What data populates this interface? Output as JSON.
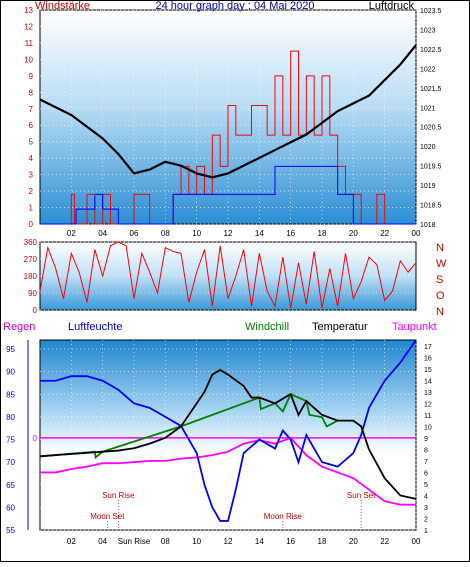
{
  "colors": {
    "wind": "#ff0000",
    "gust_blue": "#0000ff",
    "pressure": "#000000",
    "humidity": "#0000ff",
    "windchill": "#008000",
    "temperature": "#000000",
    "dewpoint": "#ff00ff",
    "rain_line": "#ff00ff",
    "axis_left_top": "#cc0000",
    "axis_left_bottom": "#0000cc",
    "sun_label": "#cc0000"
  },
  "chart_data": [
    {
      "type": "line",
      "title": "24 hour graph day : 04 Mai 2020",
      "left_label": "Windstärke",
      "right_label": "Luftdruck",
      "x_ticks": [
        "02",
        "04",
        "06",
        "08",
        "10",
        "12",
        "14",
        "16",
        "18",
        "20",
        "22",
        "00"
      ],
      "left_ticks": [
        "0",
        "1",
        "2",
        "3",
        "4",
        "5",
        "6",
        "7",
        "8",
        "9",
        "10",
        "11",
        "12",
        "13"
      ],
      "right_ticks": [
        "1018",
        "1018.5",
        "1019",
        "1019.5",
        "1020",
        "1020.5",
        "1021",
        "1021.5",
        "1022",
        "1022.5",
        "1023",
        "1023.5"
      ],
      "ylim_left": [
        0,
        13
      ],
      "ylim_right": [
        1018,
        1023.5
      ],
      "series": [
        {
          "name": "Windstärke",
          "axis": "left",
          "x": [
            0,
            1,
            2,
            2.2,
            3,
            3.5,
            4,
            4.5,
            5,
            6,
            7,
            7.5,
            8,
            8.5,
            9,
            9.5,
            10,
            10.5,
            11,
            11.5,
            12,
            12.5,
            13,
            13.5,
            14,
            14.5,
            15,
            15.5,
            16,
            16.5,
            17,
            17.5,
            18,
            18.5,
            19,
            19.5,
            20,
            20.5,
            21,
            21.5,
            22,
            23,
            24
          ],
          "y": [
            0,
            0,
            1.8,
            0,
            1.8,
            0,
            1.8,
            0,
            0,
            1.8,
            0,
            0,
            0,
            1.8,
            3.5,
            1.8,
            3.5,
            1.8,
            5.4,
            3.5,
            7.2,
            5.4,
            5.4,
            7.2,
            7.2,
            5.4,
            9,
            5.4,
            10.5,
            5.4,
            9,
            5.4,
            9,
            5.4,
            3.5,
            1.8,
            1.8,
            0,
            0,
            1.8,
            0,
            0,
            0
          ]
        },
        {
          "name": "Gust",
          "axis": "left",
          "x": [
            0,
            2,
            2.3,
            3.5,
            4,
            5,
            6,
            8.5,
            9,
            10,
            11,
            12,
            13,
            14,
            15,
            16,
            17,
            18,
            19,
            20,
            24
          ],
          "y": [
            0,
            0,
            0.9,
            1.8,
            0.9,
            0,
            0,
            1.8,
            1.8,
            1.8,
            1.8,
            1.8,
            1.8,
            1.8,
            3.5,
            3.5,
            3.5,
            3.5,
            1.8,
            0,
            0
          ]
        },
        {
          "name": "Luftdruck",
          "axis": "right",
          "x": [
            0,
            1,
            2,
            3,
            4,
            5,
            6,
            7,
            8,
            9,
            10,
            11,
            12,
            13,
            14,
            15,
            16,
            17,
            18,
            19,
            20,
            21,
            22,
            23,
            24
          ],
          "y": [
            1021.2,
            1021.0,
            1020.8,
            1020.5,
            1020.2,
            1019.8,
            1019.3,
            1019.4,
            1019.6,
            1019.5,
            1019.3,
            1019.2,
            1019.3,
            1019.5,
            1019.7,
            1019.9,
            1020.1,
            1020.3,
            1020.6,
            1020.9,
            1021.1,
            1021.3,
            1021.7,
            1022.1,
            1022.6
          ]
        }
      ]
    },
    {
      "type": "line",
      "title": "",
      "left_ticks": [
        "0",
        "90",
        "180",
        "270",
        "360"
      ],
      "right_ticks": [
        "N",
        "W",
        "S",
        "O",
        "N"
      ],
      "ylim": [
        0,
        360
      ],
      "series": [
        {
          "name": "Windrichtung",
          "x": [
            0,
            0.5,
            1,
            1.5,
            2,
            2.5,
            3,
            3.5,
            4,
            4.5,
            5,
            5.5,
            6,
            6.5,
            7,
            7.5,
            8,
            8.5,
            9,
            9.5,
            10,
            10.5,
            11,
            11.5,
            12,
            12.5,
            13,
            13.5,
            14,
            14.5,
            15,
            15.5,
            16,
            16.5,
            17,
            17.5,
            18,
            18.5,
            19,
            19.5,
            20,
            20.5,
            21,
            21.5,
            22,
            22.5,
            23,
            23.5,
            24
          ],
          "y": [
            100,
            330,
            220,
            60,
            300,
            200,
            40,
            320,
            180,
            340,
            360,
            340,
            60,
            300,
            200,
            90,
            330,
            310,
            300,
            40,
            200,
            320,
            20,
            340,
            60,
            180,
            320,
            20,
            300,
            100,
            20,
            280,
            10,
            250,
            30,
            310,
            10,
            220,
            20,
            300,
            60,
            150,
            280,
            240,
            50,
            100,
            260,
            200,
            250
          ]
        }
      ]
    },
    {
      "type": "line",
      "left_label": "Regen",
      "left_label2": "Luftfeuchte",
      "legend": [
        "Windchill",
        "Temperatur",
        "Taupunkt"
      ],
      "x_ticks": [
        "02",
        "04",
        "Sun Rise",
        "08",
        "10",
        "12",
        "14",
        "16",
        "18",
        "20",
        "22",
        "00"
      ],
      "left_ticks": [
        "55",
        "60",
        "65",
        "70",
        "75",
        "80",
        "85",
        "90",
        "95"
      ],
      "right_ticks": [
        "1",
        "2",
        "3",
        "4",
        "5",
        "6",
        "7",
        "8",
        "9",
        "10",
        "11",
        "12",
        "13",
        "14",
        "15",
        "16",
        "17"
      ],
      "zero_label": "0",
      "ylim_left": [
        55,
        97
      ],
      "ylim_right": [
        1,
        17.5
      ],
      "annotations": [
        {
          "text": "Sun Rise",
          "x": 5.0,
          "row": "upper"
        },
        {
          "text": "Sun Set",
          "x": 20.5,
          "row": "upper"
        },
        {
          "text": "Moon Set",
          "x": 4.3,
          "row": "lower"
        },
        {
          "text": "Moon Rise",
          "x": 15.5,
          "row": "lower"
        }
      ],
      "series": [
        {
          "name": "Luftfeuchte",
          "axis": "left",
          "x": [
            0,
            1,
            2,
            3,
            4,
            5,
            6,
            7,
            8,
            9,
            10,
            10.5,
            11,
            11.5,
            12,
            12.5,
            13,
            14,
            15,
            15.5,
            16,
            16.5,
            17,
            18,
            19,
            20,
            20.5,
            21,
            22,
            23,
            24
          ],
          "y": [
            88,
            88,
            89,
            89,
            88,
            86,
            83,
            82,
            80,
            78,
            72,
            65,
            60,
            57,
            57,
            64,
            72,
            75,
            73,
            77,
            75,
            70,
            76,
            70,
            69,
            72,
            76,
            82,
            88,
            92,
            97
          ]
        },
        {
          "name": "Temperatur",
          "axis": "right",
          "x": [
            0,
            1,
            2,
            3,
            4,
            5,
            6,
            7,
            8,
            9,
            10,
            10.5,
            11,
            11.5,
            12,
            12.5,
            13,
            13.5,
            14,
            15,
            16,
            16.5,
            17,
            18,
            19,
            20,
            20.5,
            21,
            22,
            23,
            24
          ],
          "y": [
            7.4,
            7.5,
            7.6,
            7.7,
            7.8,
            7.9,
            8.1,
            8.5,
            9.0,
            10.0,
            12.0,
            13.0,
            14.5,
            14.9,
            14.5,
            14.0,
            13.5,
            12.5,
            12.5,
            12.0,
            12.8,
            11.0,
            12.2,
            11.0,
            10.5,
            10.5,
            10.0,
            8.0,
            5.5,
            4.0,
            3.7
          ]
        },
        {
          "name": "Windchill",
          "axis": "right",
          "x": [
            0,
            3.5,
            3.55,
            4,
            9,
            14,
            14.1,
            15,
            15.5,
            16,
            17,
            17.2,
            18,
            18.3,
            19
          ],
          "y": [
            7.4,
            7.8,
            7.3,
            7.8,
            10.0,
            12.5,
            11.5,
            12.0,
            11.3,
            12.8,
            12.2,
            11.0,
            10.8,
            10.0,
            10.5
          ]
        },
        {
          "name": "Taupunkt",
          "axis": "right",
          "x": [
            0,
            1,
            2,
            3,
            4,
            5,
            6,
            7,
            8,
            9,
            10,
            11,
            12,
            13,
            14,
            15,
            16,
            17,
            18,
            19,
            20,
            21,
            22,
            23,
            24
          ],
          "y": [
            6.0,
            6.0,
            6.3,
            6.5,
            6.8,
            6.8,
            6.9,
            7.0,
            7.0,
            7.2,
            7.3,
            7.5,
            7.8,
            8.5,
            8.8,
            8.5,
            9.0,
            7.5,
            6.5,
            6.0,
            5.5,
            4.5,
            3.5,
            3.2,
            3.2
          ]
        },
        {
          "name": "Regen",
          "axis": "right",
          "x": [
            0,
            24
          ],
          "y": [
            9.0,
            9.0
          ]
        }
      ]
    }
  ]
}
